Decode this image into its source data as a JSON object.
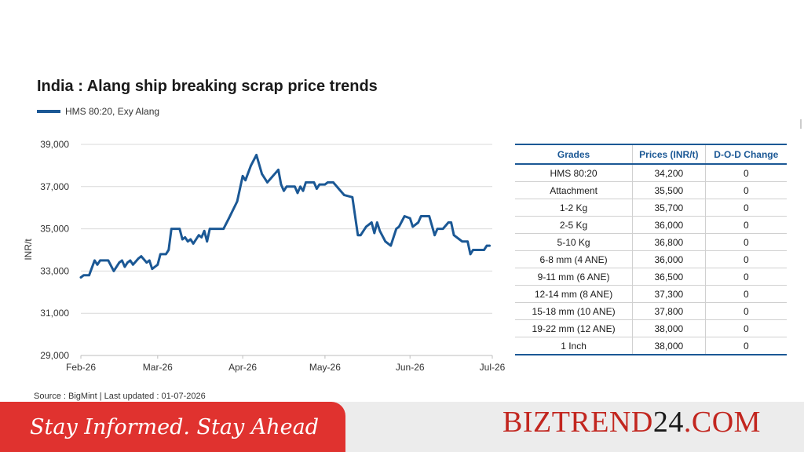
{
  "chart_data": {
    "type": "line",
    "title": "India : Alang ship breaking scrap price trends",
    "ylabel": "INR/t",
    "xlabel": "",
    "ylim": [
      29000,
      39000
    ],
    "y_ticks": [
      "29,000",
      "31,000",
      "33,000",
      "35,000",
      "37,000",
      "39,000"
    ],
    "x_ticks": [
      "Feb-26",
      "Mar-26",
      "Apr-26",
      "May-26",
      "Jun-26",
      "Jul-26"
    ],
    "grid": "horizontal",
    "legend": "top-left",
    "color": "#1b5895",
    "series": [
      {
        "name": "HMS 80:20, Exy Alang",
        "points": [
          [
            "2026-02-01",
            32700
          ],
          [
            "2026-02-02",
            32800
          ],
          [
            "2026-02-04",
            32800
          ],
          [
            "2026-02-06",
            33500
          ],
          [
            "2026-02-07",
            33300
          ],
          [
            "2026-02-08",
            33500
          ],
          [
            "2026-02-11",
            33500
          ],
          [
            "2026-02-13",
            33000
          ],
          [
            "2026-02-15",
            33400
          ],
          [
            "2026-02-16",
            33500
          ],
          [
            "2026-02-17",
            33200
          ],
          [
            "2026-02-18",
            33400
          ],
          [
            "2026-02-19",
            33500
          ],
          [
            "2026-02-20",
            33300
          ],
          [
            "2026-02-22",
            33600
          ],
          [
            "2026-02-23",
            33700
          ],
          [
            "2026-02-25",
            33400
          ],
          [
            "2026-02-26",
            33500
          ],
          [
            "2026-02-27",
            33100
          ],
          [
            "2026-03-01",
            33300
          ],
          [
            "2026-03-02",
            33800
          ],
          [
            "2026-03-04",
            33800
          ],
          [
            "2026-03-05",
            34000
          ],
          [
            "2026-03-06",
            35000
          ],
          [
            "2026-03-09",
            35000
          ],
          [
            "2026-03-10",
            34500
          ],
          [
            "2026-03-11",
            34600
          ],
          [
            "2026-03-12",
            34400
          ],
          [
            "2026-03-13",
            34500
          ],
          [
            "2026-03-14",
            34300
          ],
          [
            "2026-03-16",
            34700
          ],
          [
            "2026-03-17",
            34600
          ],
          [
            "2026-03-18",
            34900
          ],
          [
            "2026-03-19",
            34400
          ],
          [
            "2026-03-20",
            35000
          ],
          [
            "2026-03-25",
            35000
          ],
          [
            "2026-03-27",
            35500
          ],
          [
            "2026-03-30",
            36300
          ],
          [
            "2026-04-01",
            37500
          ],
          [
            "2026-04-02",
            37300
          ],
          [
            "2026-04-04",
            38000
          ],
          [
            "2026-04-06",
            38500
          ],
          [
            "2026-04-08",
            37600
          ],
          [
            "2026-04-10",
            37200
          ],
          [
            "2026-04-14",
            37800
          ],
          [
            "2026-04-15",
            37100
          ],
          [
            "2026-04-16",
            36800
          ],
          [
            "2026-04-17",
            37000
          ],
          [
            "2026-04-20",
            37000
          ],
          [
            "2026-04-21",
            36700
          ],
          [
            "2026-04-22",
            37000
          ],
          [
            "2026-04-23",
            36800
          ],
          [
            "2026-04-24",
            37200
          ],
          [
            "2026-04-27",
            37200
          ],
          [
            "2026-04-28",
            36900
          ],
          [
            "2026-04-29",
            37100
          ],
          [
            "2026-05-01",
            37100
          ],
          [
            "2026-05-02",
            37200
          ],
          [
            "2026-05-04",
            37200
          ],
          [
            "2026-05-06",
            36900
          ],
          [
            "2026-05-08",
            36600
          ],
          [
            "2026-05-11",
            36500
          ],
          [
            "2026-05-13",
            34700
          ],
          [
            "2026-05-14",
            34700
          ],
          [
            "2026-05-16",
            35100
          ],
          [
            "2026-05-18",
            35300
          ],
          [
            "2026-05-19",
            34800
          ],
          [
            "2026-05-20",
            35300
          ],
          [
            "2026-05-21",
            34900
          ],
          [
            "2026-05-23",
            34400
          ],
          [
            "2026-05-25",
            34200
          ],
          [
            "2026-05-27",
            35000
          ],
          [
            "2026-05-28",
            35100
          ],
          [
            "2026-05-30",
            35600
          ],
          [
            "2026-06-01",
            35500
          ],
          [
            "2026-06-02",
            35100
          ],
          [
            "2026-06-04",
            35300
          ],
          [
            "2026-06-05",
            35600
          ],
          [
            "2026-06-08",
            35600
          ],
          [
            "2026-06-10",
            34700
          ],
          [
            "2026-06-11",
            35000
          ],
          [
            "2026-06-13",
            35000
          ],
          [
            "2026-06-15",
            35300
          ],
          [
            "2026-06-16",
            35300
          ],
          [
            "2026-06-17",
            34700
          ],
          [
            "2026-06-19",
            34500
          ],
          [
            "2026-06-20",
            34400
          ],
          [
            "2026-06-22",
            34400
          ],
          [
            "2026-06-23",
            33800
          ],
          [
            "2026-06-24",
            34000
          ],
          [
            "2026-06-28",
            34000
          ],
          [
            "2026-06-29",
            34200
          ],
          [
            "2026-06-30",
            34200
          ]
        ]
      }
    ]
  },
  "table": {
    "headers": [
      "Grades",
      "Prices (INR/t)",
      "D-O-D Change"
    ],
    "rows": [
      [
        "HMS 80:20",
        "34,200",
        "0"
      ],
      [
        "Attachment",
        "35,500",
        "0"
      ],
      [
        "1-2 Kg",
        "35,700",
        "0"
      ],
      [
        "2-5 Kg",
        "36,000",
        "0"
      ],
      [
        "5-10 Kg",
        "36,800",
        "0"
      ],
      [
        "6-8 mm (4 ANE)",
        "36,000",
        "0"
      ],
      [
        "9-11 mm (6 ANE)",
        "36,500",
        "0"
      ],
      [
        "12-14 mm (8 ANE)",
        "37,300",
        "0"
      ],
      [
        "15-18 mm (10 ANE)",
        "37,800",
        "0"
      ],
      [
        "19-22 mm (12 ANE)",
        "38,000",
        "0"
      ],
      [
        "1 Inch",
        "38,000",
        "0"
      ]
    ]
  },
  "source": "Source : BigMint | Last updated : 01-07-2026",
  "footer": {
    "tagline": "Stay Informed. Stay Ahead",
    "brand_part1": "BIZ",
    "brand_part2": "TREND",
    "brand_number": "24",
    "brand_part3": ".COM"
  }
}
